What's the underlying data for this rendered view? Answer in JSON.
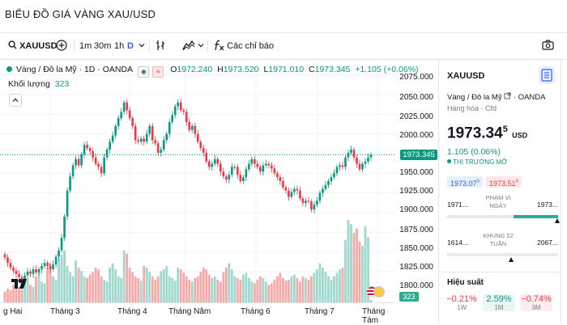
{
  "page": {
    "title": "BIỂU ĐỒ GIÁ VÀNG XAU/USD"
  },
  "toolbar": {
    "symbol": "XAUUSD",
    "intervals": [
      "1m",
      "30m",
      "1h",
      "D"
    ],
    "indicators_label": "Các chỉ báo"
  },
  "legend": {
    "name": "Vàng / Đô la Mỹ · 1D · OANDA",
    "open_label": "O",
    "open": "1972.240",
    "high_label": "H",
    "high": "1973.520",
    "low_label": "L",
    "low": "1971.010",
    "close_label": "C",
    "close": "1973.345",
    "change": "+1.105 (+0.06%)",
    "volume_label": "Khối lượng",
    "volume": "323"
  },
  "price_axis": {
    "ticks": [
      "2075.000",
      "2050.000",
      "2025.000",
      "2000.000",
      "1975.000",
      "1950.000",
      "1925.000",
      "1900.000",
      "1875.000",
      "1850.000",
      "1825.000",
      "1800.000"
    ],
    "current_price": "1973.345",
    "volume_tag": "323"
  },
  "time_axis": {
    "ticks": [
      "g Hai",
      "Tháng 3",
      "Tháng 4",
      "Tháng Năm",
      "Tháng 6",
      "Tháng 7",
      "Tháng Tám"
    ]
  },
  "chart_data": {
    "type": "candlestick",
    "symbol": "XAUUSD",
    "ylim": [
      1790,
      2090
    ],
    "y_ticks": [
      1800,
      1825,
      1850,
      1875,
      1900,
      1925,
      1950,
      1975,
      2000,
      2025,
      2050,
      2075
    ],
    "current_price": 1973.345,
    "close": [
      1843,
      1836,
      1830,
      1826,
      1822,
      1818,
      1815,
      1820,
      1825,
      1822,
      1828,
      1824,
      1828,
      1832,
      1836,
      1832,
      1828,
      1834,
      1844,
      1852,
      1868,
      1895,
      1928,
      1946,
      1960,
      1968,
      1960,
      1974,
      1986,
      1982,
      1978,
      1970,
      1962,
      1958,
      1950,
      1970,
      1980,
      1990,
      1998,
      2010,
      2020,
      2028,
      2040,
      2030,
      2020,
      2010,
      1992,
      1990,
      1994,
      1990,
      2000,
      2010,
      1992,
      1988,
      1976,
      1980,
      1992,
      2000,
      2015,
      2024,
      2035,
      2040,
      2030,
      2028,
      2015,
      2005,
      2010,
      2000,
      1990,
      1982,
      1976,
      1965,
      1958,
      1962,
      1968,
      1962,
      1952,
      1946,
      1942,
      1948,
      1958,
      1958,
      1948,
      1940,
      1945,
      1955,
      1962,
      1968,
      1962,
      1958,
      1952,
      1960,
      1962,
      1960,
      1956,
      1950,
      1945,
      1940,
      1932,
      1928,
      1920,
      1926,
      1930,
      1928,
      1918,
      1912,
      1915,
      1914,
      1904,
      1910,
      1915,
      1925,
      1930,
      1935,
      1940,
      1945,
      1950,
      1958,
      1960,
      1958,
      1970,
      1976,
      1980,
      1970,
      1962,
      1955,
      1962,
      1965,
      1970,
      1973.345
    ],
    "volume": [
      12,
      16,
      14,
      20,
      22,
      18,
      15,
      25,
      28,
      20,
      18,
      30,
      35,
      24,
      22,
      40,
      45,
      30,
      26,
      50,
      55,
      60,
      42,
      35,
      30,
      48,
      40,
      36,
      30,
      28,
      32,
      35,
      40,
      38,
      30,
      26,
      24,
      40,
      45,
      38,
      30,
      28,
      60,
      56,
      40,
      35,
      30,
      28,
      25,
      42,
      40,
      35,
      30,
      26,
      30,
      36,
      38,
      42,
      30,
      28,
      25,
      40,
      38,
      34,
      30,
      26,
      24,
      28,
      30,
      35,
      40,
      38,
      32,
      28,
      30,
      26,
      24,
      35,
      40,
      45,
      38,
      30,
      28,
      26,
      32,
      34,
      28,
      24,
      22,
      26,
      30,
      28,
      24,
      20,
      22,
      26,
      30,
      34,
      28,
      25,
      26,
      30,
      32,
      28,
      24,
      30,
      28,
      26,
      30,
      34,
      38,
      45,
      40,
      35,
      30,
      26,
      30,
      34,
      38,
      40,
      72,
      95,
      90,
      80,
      85,
      70,
      65,
      88,
      75,
      3
    ]
  },
  "panel": {
    "symbol": "XAUUSD",
    "name": "Vàng / Đô la Mỹ",
    "exchange": "OANDA",
    "category": "Hàng hóa · Cfd",
    "price_main": "1973.34",
    "price_sup": "5",
    "currency": "USD",
    "change": "1.105 (0.06%)",
    "market_status": "THỊ TRƯỜNG MỞ",
    "bid_main": "1973.07",
    "bid_sup": "0",
    "ask_main": "1973.51",
    "ask_sup": "0",
    "day_low": "1971...",
    "day_range_label": "PHẠM VI NGÀY",
    "day_high": "1973...",
    "week52_low": "1614...",
    "week52_label": "KHUNG 52 TUẦN",
    "week52_high": "2067...",
    "performance_title": "Hiệu suất",
    "performance": [
      {
        "value": "−0.21%",
        "period": "1W",
        "dir": "down"
      },
      {
        "value": "2.59%",
        "period": "1M",
        "dir": "up"
      },
      {
        "value": "−0.74%",
        "period": "3M",
        "dir": "down"
      }
    ]
  },
  "colors": {
    "up": "#089981",
    "down": "#f23645",
    "up_vol": "#9fd8cd",
    "down_vol": "#f7a9a7",
    "accent": "#2962ff",
    "grid": "#f0f3fa"
  }
}
